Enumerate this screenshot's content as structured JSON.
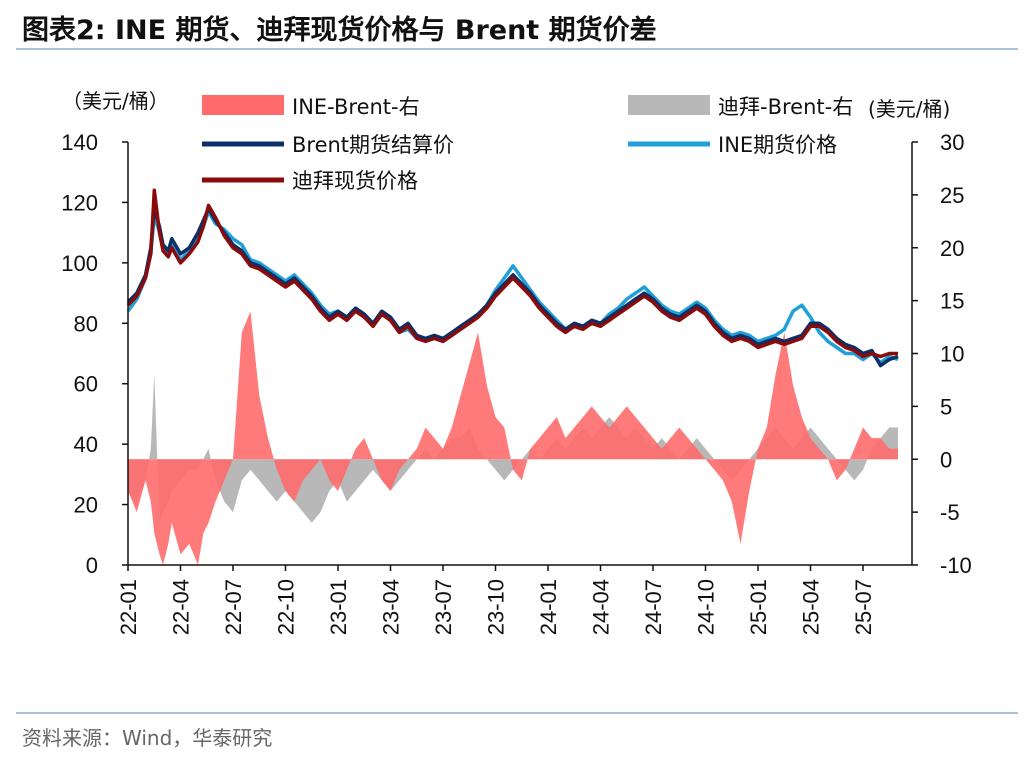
{
  "header": {
    "title": "图表2:  INE 期货、迪拜现货价格与 Brent 期货价差"
  },
  "footer": {
    "source": "资料来源：Wind，华泰研究"
  },
  "chart_data": {
    "type": "line",
    "title": "INE 期货、迪拜现货价格与 Brent 期货价差",
    "left_unit": "（美元/桶）",
    "right_unit": "(美元/桶)",
    "ylim": [
      0,
      140
    ],
    "yticks": [
      "0",
      "20",
      "40",
      "60",
      "80",
      "100",
      "120",
      "140"
    ],
    "y2lim": [
      -10,
      30
    ],
    "y2ticks": [
      "-10",
      "-5",
      "0",
      "5",
      "10",
      "15",
      "20",
      "25",
      "30"
    ],
    "x_ticks": [
      "22-01",
      "22-04",
      "22-07",
      "22-10",
      "23-01",
      "23-04",
      "23-07",
      "23-10",
      "24-01",
      "24-04",
      "24-07",
      "24-10",
      "25-01",
      "25-04",
      "25-07"
    ],
    "legend": [
      {
        "label": "INE-Brent-右",
        "type": "area",
        "color": "#ff6b6b"
      },
      {
        "label": "迪拜-Brent-右",
        "type": "area",
        "color": "#b8b8b8"
      },
      {
        "label": "Brent期货结算价",
        "type": "line",
        "color": "#0b2f66"
      },
      {
        "label": "INE期货价格",
        "type": "line",
        "color": "#1fa0d8"
      },
      {
        "label": "迪拜现货价格",
        "type": "line",
        "color": "#8b0b0b"
      }
    ],
    "series_points": {
      "x_months": [
        0,
        0.5,
        1,
        1.3,
        1.5,
        1.8,
        2,
        2.3,
        2.5,
        3,
        3.5,
        4,
        4.3,
        4.6,
        5,
        5.5,
        6,
        6.5,
        7,
        7.5,
        8,
        8.5,
        9,
        9.5,
        10,
        10.5,
        11,
        11.5,
        12,
        12.5,
        13,
        13.5,
        14,
        14.5,
        15,
        15.5,
        16,
        16.5,
        17,
        17.5,
        18,
        18.5,
        19,
        19.5,
        20,
        20.5,
        21,
        21.5,
        22,
        22.5,
        23,
        23.5,
        24,
        24.5,
        25,
        25.5,
        26,
        26.5,
        27,
        27.5,
        28,
        28.5,
        29,
        29.5,
        30,
        30.5,
        31,
        31.5,
        32,
        32.5,
        33,
        33.5,
        34,
        34.5,
        35,
        35.5,
        36,
        36.5,
        37,
        37.5,
        38,
        38.5,
        39,
        39.5,
        40,
        40.5,
        41,
        41.5,
        42,
        42.5,
        43,
        43.5,
        44
      ],
      "brent": [
        87,
        90,
        96,
        105,
        118,
        112,
        106,
        104,
        108,
        103,
        105,
        110,
        114,
        118,
        114,
        110,
        106,
        104,
        100,
        99,
        97,
        95,
        93,
        95,
        92,
        89,
        85,
        82,
        84,
        82,
        85,
        83,
        80,
        84,
        82,
        78,
        80,
        76,
        75,
        76,
        75,
        77,
        79,
        81,
        83,
        86,
        90,
        93,
        96,
        93,
        90,
        86,
        83,
        80,
        78,
        80,
        79,
        81,
        80,
        82,
        84,
        86,
        88,
        90,
        88,
        85,
        83,
        82,
        84,
        86,
        84,
        80,
        77,
        75,
        76,
        75,
        73,
        74,
        75,
        74,
        75,
        76,
        80,
        80,
        78,
        75,
        73,
        72,
        70,
        71,
        66,
        68,
        69
      ],
      "ine": [
        84,
        88,
        95,
        103,
        116,
        110,
        105,
        103,
        106,
        101,
        104,
        108,
        112,
        117,
        113,
        111,
        108,
        106,
        101,
        100,
        98,
        96,
        94,
        96,
        93,
        90,
        86,
        83,
        84,
        82,
        85,
        83,
        80,
        83,
        81,
        77,
        78,
        75,
        74,
        75,
        74,
        76,
        78,
        80,
        82,
        86,
        91,
        95,
        99,
        95,
        91,
        87,
        84,
        81,
        78,
        80,
        79,
        81,
        80,
        83,
        85,
        88,
        90,
        92,
        89,
        86,
        84,
        83,
        85,
        87,
        85,
        81,
        78,
        76,
        77,
        76,
        74,
        75,
        76,
        78,
        84,
        86,
        82,
        77,
        74,
        72,
        70,
        70,
        68,
        70,
        67,
        69,
        68
      ],
      "dubai": [
        86,
        89,
        95,
        103,
        124,
        110,
        104,
        102,
        105,
        100,
        103,
        107,
        112,
        119,
        115,
        109,
        105,
        103,
        99,
        98,
        96,
        94,
        92,
        94,
        91,
        88,
        84,
        81,
        83,
        81,
        84,
        82,
        79,
        83,
        81,
        77,
        79,
        75,
        74,
        75,
        74,
        76,
        78,
        80,
        82,
        85,
        89,
        92,
        95,
        92,
        89,
        85,
        82,
        79,
        77,
        79,
        78,
        80,
        79,
        81,
        83,
        85,
        87,
        89,
        87,
        84,
        82,
        81,
        83,
        85,
        83,
        79,
        76,
        74,
        75,
        74,
        72,
        73,
        74,
        73,
        74,
        75,
        79,
        79,
        77,
        74,
        72,
        71,
        69,
        70,
        69,
        70,
        70
      ],
      "ine_spread": [
        -3,
        -5,
        -2,
        -4,
        -7,
        -9,
        -10,
        -8,
        -6,
        -9,
        -8,
        -10,
        -7,
        -6,
        -4,
        -2,
        0,
        12,
        14,
        6,
        2,
        -1,
        -3,
        -4,
        -2,
        -1,
        0,
        -2,
        -3,
        -1,
        1,
        2,
        0,
        -2,
        -3,
        -1,
        0,
        1,
        3,
        2,
        1,
        3,
        6,
        9,
        12,
        7,
        4,
        3,
        -1,
        -2,
        1,
        2,
        3,
        4,
        2,
        3,
        4,
        5,
        4,
        3,
        4,
        5,
        4,
        3,
        2,
        1,
        2,
        3,
        2,
        1,
        0,
        -1,
        -2,
        -4,
        -8,
        -3,
        1,
        3,
        8,
        12,
        7,
        4,
        2,
        1,
        0,
        -2,
        -1,
        1,
        3,
        2,
        2,
        1,
        1
      ],
      "dubai_spread": [
        -3,
        -4,
        -2,
        1,
        8,
        -6,
        -5,
        -4,
        -3,
        -2,
        -1,
        -1,
        0,
        1,
        -2,
        -4,
        -5,
        -2,
        -1,
        -2,
        -3,
        -4,
        -3,
        -4,
        -5,
        -6,
        -5,
        -3,
        -2,
        -4,
        -3,
        -2,
        -1,
        -2,
        -3,
        -2,
        -1,
        0,
        1,
        0,
        1,
        2,
        2,
        3,
        1,
        0,
        -1,
        -2,
        -1,
        0,
        1,
        0,
        1,
        2,
        1,
        2,
        3,
        2,
        3,
        4,
        3,
        2,
        3,
        2,
        1,
        2,
        1,
        0,
        1,
        2,
        1,
        0,
        -1,
        -2,
        -1,
        0,
        1,
        2,
        3,
        2,
        1,
        2,
        3,
        2,
        1,
        0,
        -1,
        -2,
        -1,
        1,
        2,
        3,
        3
      ]
    }
  }
}
